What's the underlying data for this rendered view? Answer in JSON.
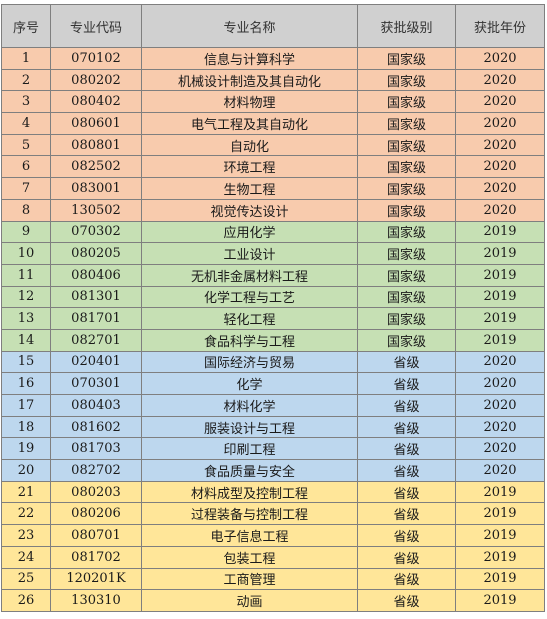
{
  "table": {
    "headers": [
      "序号",
      "专业代码",
      "专业名称",
      "获批级别",
      "获批年份"
    ],
    "rows": [
      {
        "no": "1",
        "code": "070102",
        "name": "信息与计算科学",
        "level": "国家级",
        "year": "2020",
        "group": "orange"
      },
      {
        "no": "2",
        "code": "080202",
        "name": "机械设计制造及其自动化",
        "level": "国家级",
        "year": "2020",
        "group": "orange"
      },
      {
        "no": "3",
        "code": "080402",
        "name": "材料物理",
        "level": "国家级",
        "year": "2020",
        "group": "orange"
      },
      {
        "no": "4",
        "code": "080601",
        "name": "电气工程及其自动化",
        "level": "国家级",
        "year": "2020",
        "group": "orange"
      },
      {
        "no": "5",
        "code": "080801",
        "name": "自动化",
        "level": "国家级",
        "year": "2020",
        "group": "orange"
      },
      {
        "no": "6",
        "code": "082502",
        "name": "环境工程",
        "level": "国家级",
        "year": "2020",
        "group": "orange"
      },
      {
        "no": "7",
        "code": "083001",
        "name": "生物工程",
        "level": "国家级",
        "year": "2020",
        "group": "orange"
      },
      {
        "no": "8",
        "code": "130502",
        "name": "视觉传达设计",
        "level": "国家级",
        "year": "2020",
        "group": "orange"
      },
      {
        "no": "9",
        "code": "070302",
        "name": "应用化学",
        "level": "国家级",
        "year": "2019",
        "group": "green"
      },
      {
        "no": "10",
        "code": "080205",
        "name": "工业设计",
        "level": "国家级",
        "year": "2019",
        "group": "green"
      },
      {
        "no": "11",
        "code": "080406",
        "name": "无机非金属材料工程",
        "level": "国家级",
        "year": "2019",
        "group": "green"
      },
      {
        "no": "12",
        "code": "081301",
        "name": "化学工程与工艺",
        "level": "国家级",
        "year": "2019",
        "group": "green"
      },
      {
        "no": "13",
        "code": "081701",
        "name": "轻化工程",
        "level": "国家级",
        "year": "2019",
        "group": "green"
      },
      {
        "no": "14",
        "code": "082701",
        "name": "食品科学与工程",
        "level": "国家级",
        "year": "2019",
        "group": "green"
      },
      {
        "no": "15",
        "code": "020401",
        "name": "国际经济与贸易",
        "level": "省级",
        "year": "2020",
        "group": "blue"
      },
      {
        "no": "16",
        "code": "070301",
        "name": "化学",
        "level": "省级",
        "year": "2020",
        "group": "blue"
      },
      {
        "no": "17",
        "code": "080403",
        "name": "材料化学",
        "level": "省级",
        "year": "2020",
        "group": "blue"
      },
      {
        "no": "18",
        "code": "081602",
        "name": "服装设计与工程",
        "level": "省级",
        "year": "2020",
        "group": "blue"
      },
      {
        "no": "19",
        "code": "081703",
        "name": "印刷工程",
        "level": "省级",
        "year": "2020",
        "group": "blue"
      },
      {
        "no": "20",
        "code": "082702",
        "name": "食品质量与安全",
        "level": "省级",
        "year": "2020",
        "group": "blue"
      },
      {
        "no": "21",
        "code": "080203",
        "name": "材料成型及控制工程",
        "level": "省级",
        "year": "2019",
        "group": "yellow"
      },
      {
        "no": "22",
        "code": "080206",
        "name": "过程装备与控制工程",
        "level": "省级",
        "year": "2019",
        "group": "yellow"
      },
      {
        "no": "23",
        "code": "080701",
        "name": "电子信息工程",
        "level": "省级",
        "year": "2019",
        "group": "yellow"
      },
      {
        "no": "24",
        "code": "081702",
        "name": "包装工程",
        "level": "省级",
        "year": "2019",
        "group": "yellow"
      },
      {
        "no": "25",
        "code": "120201K",
        "name": "工商管理",
        "level": "省级",
        "year": "2019",
        "group": "yellow"
      },
      {
        "no": "26",
        "code": "130310",
        "name": "动画",
        "level": "省级",
        "year": "2019",
        "group": "yellow"
      }
    ]
  },
  "colors": {
    "header_bg": "#d0d0d0",
    "orange": "#f8cbad",
    "green": "#c6e0b4",
    "blue": "#bdd7ee",
    "yellow": "#ffe699",
    "border": "#7f7f7f"
  }
}
